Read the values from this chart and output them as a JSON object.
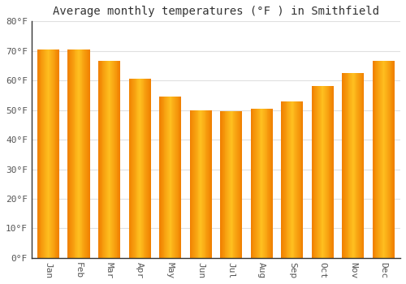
{
  "title": "Average monthly temperatures (°F ) in Smithfield",
  "months": [
    "Jan",
    "Feb",
    "Mar",
    "Apr",
    "May",
    "Jun",
    "Jul",
    "Aug",
    "Sep",
    "Oct",
    "Nov",
    "Dec"
  ],
  "values": [
    70.5,
    70.5,
    66.5,
    60.5,
    54.5,
    50.0,
    49.5,
    50.5,
    53.0,
    58.0,
    62.5,
    66.5
  ],
  "bar_color_center": "#FFB300",
  "bar_color_edge": "#F08000",
  "background_color": "#FFFFFF",
  "plot_bg_color": "#FFFFFF",
  "ylim": [
    0,
    80
  ],
  "yticks": [
    0,
    10,
    20,
    30,
    40,
    50,
    60,
    70,
    80
  ],
  "ytick_labels": [
    "0°F",
    "10°F",
    "20°F",
    "30°F",
    "40°F",
    "50°F",
    "60°F",
    "70°F",
    "80°F"
  ],
  "grid_color": "#E0E0E0",
  "title_fontsize": 10,
  "tick_fontsize": 8,
  "bar_width": 0.72,
  "spine_color": "#333333",
  "tick_color": "#555555"
}
